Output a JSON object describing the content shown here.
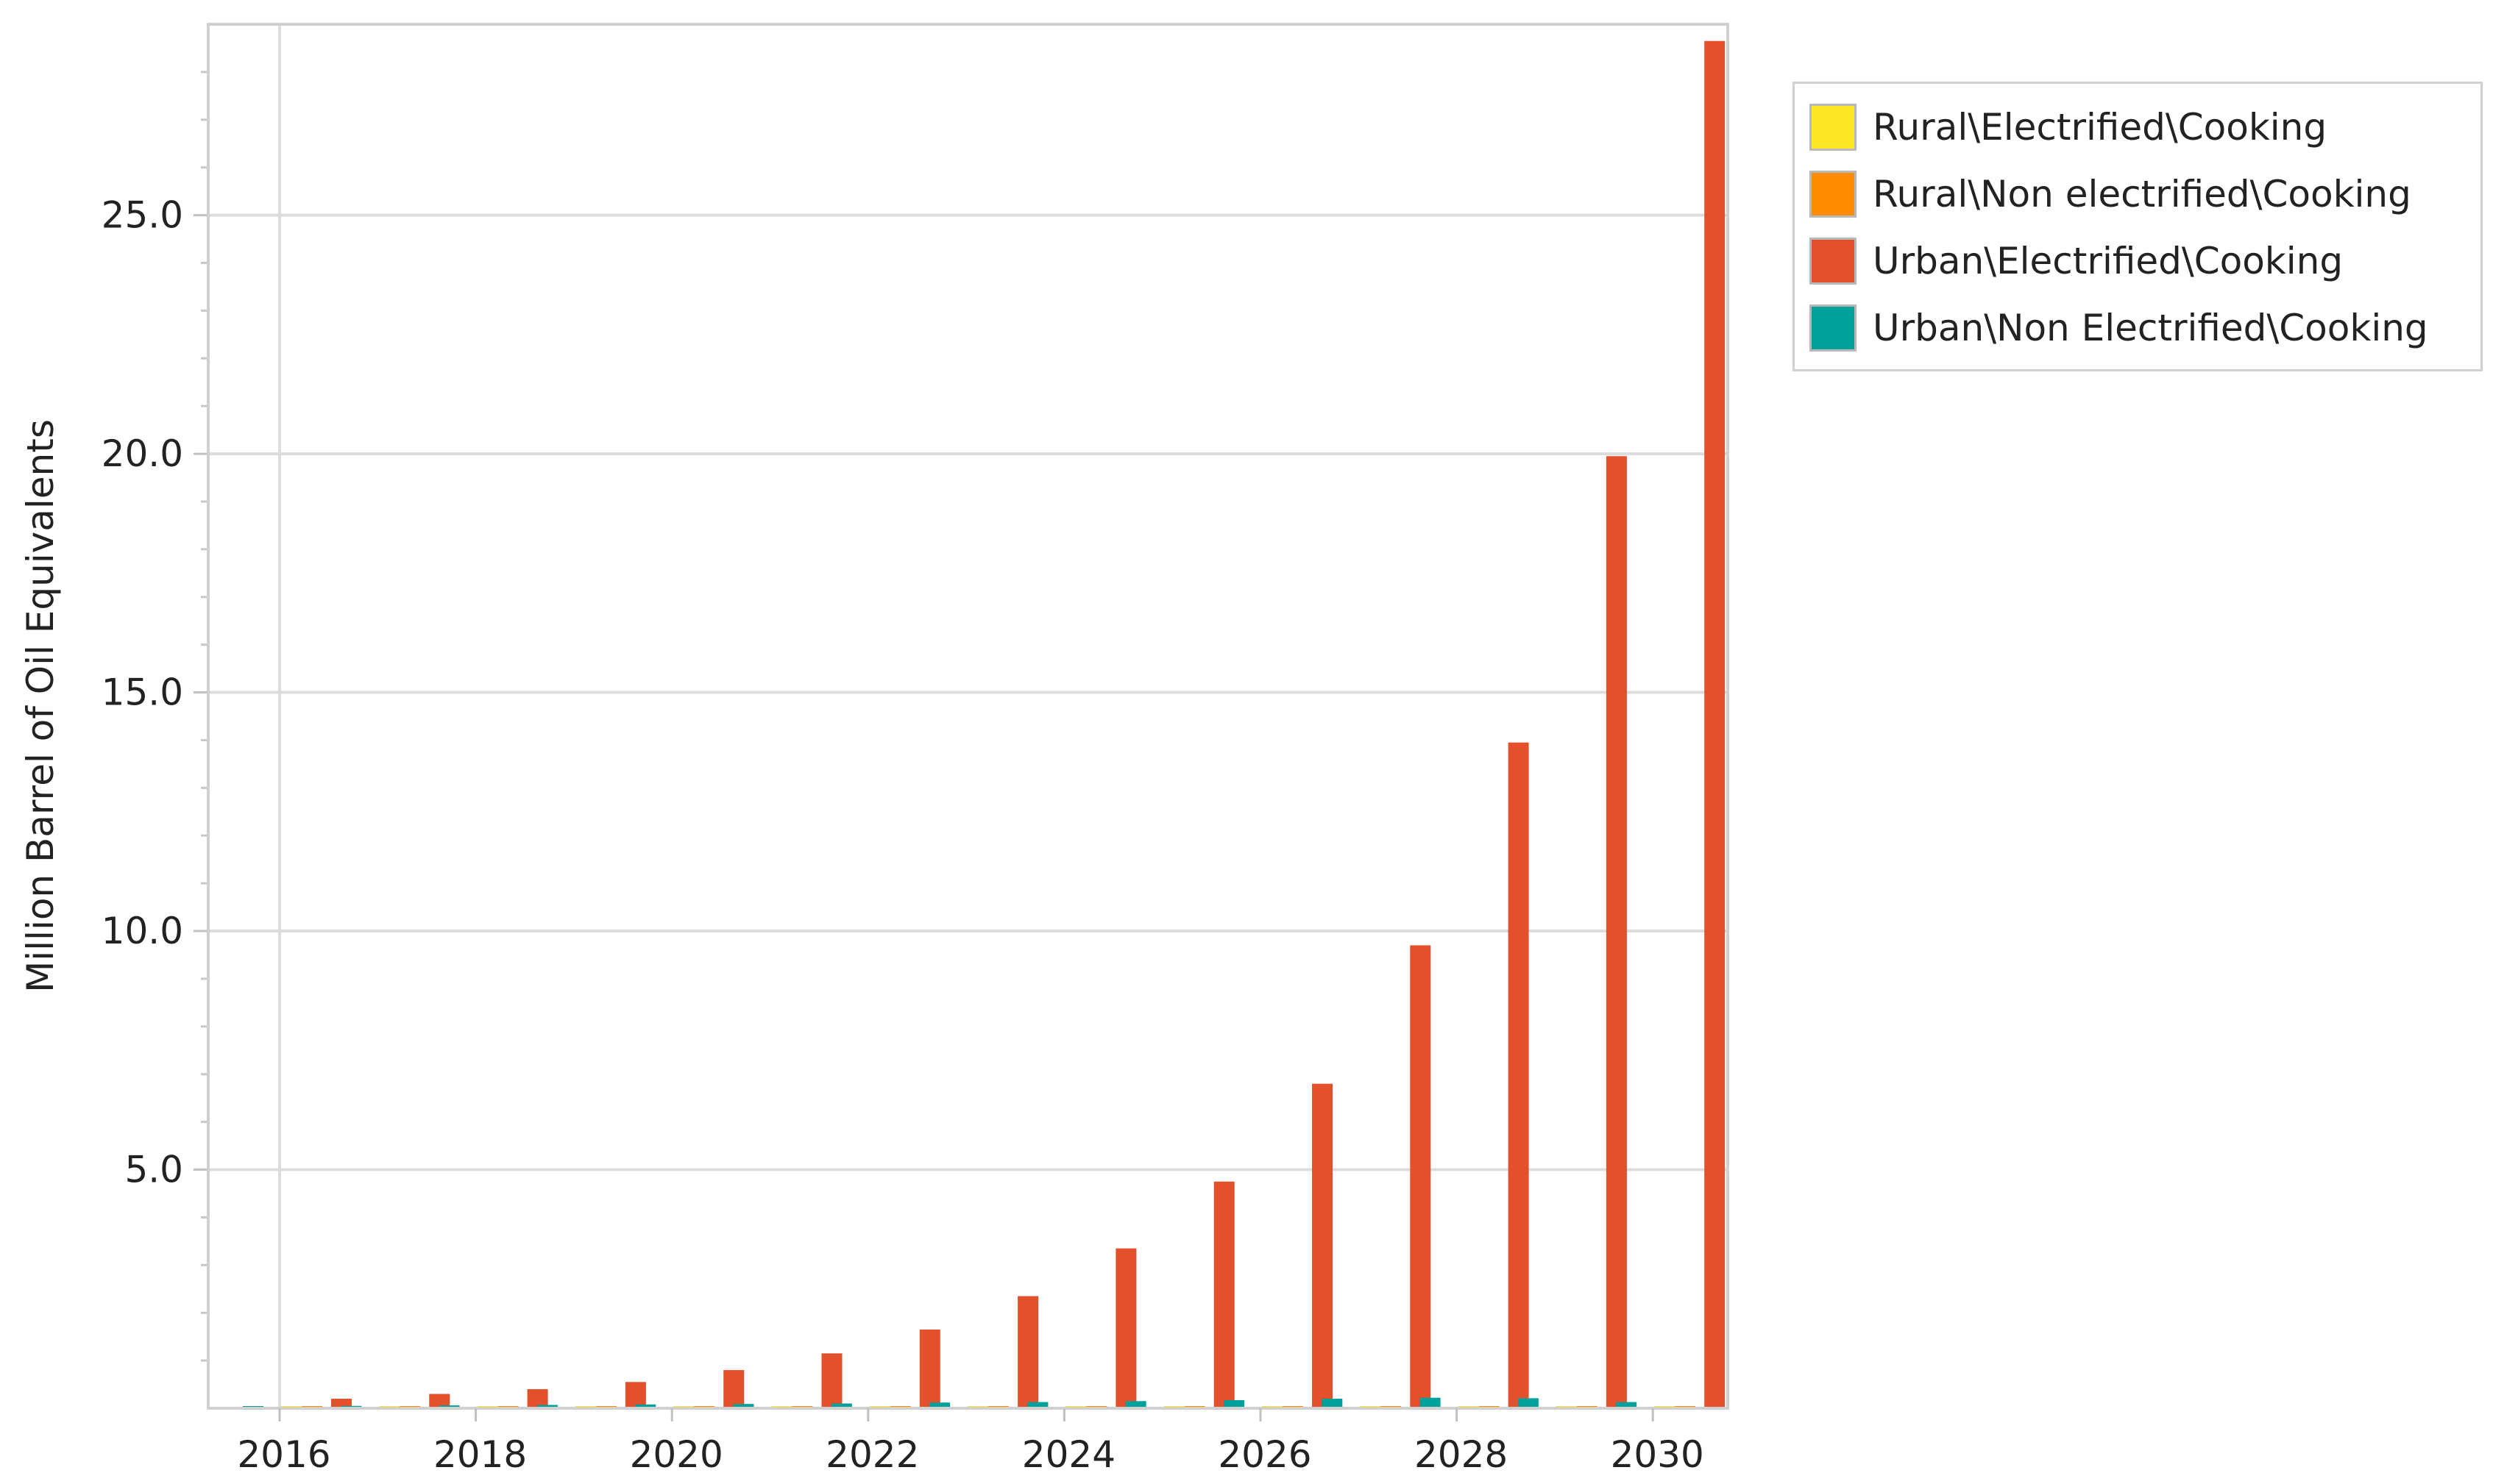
{
  "chart_data": {
    "type": "bar",
    "ylabel": "Million Barrel of Oil Equivalents",
    "xlabel": "",
    "ylim": [
      0,
      29
    ],
    "yticks": [
      "5.0",
      "10.0",
      "15.0",
      "20.0",
      "25.0"
    ],
    "x_tick_labels": [
      "2016",
      "2018",
      "2020",
      "2022",
      "2024",
      "2026",
      "2028",
      "2030"
    ],
    "categories": [
      "2016",
      "2017",
      "2018",
      "2019",
      "2020",
      "2021",
      "2022",
      "2023",
      "2024",
      "2025",
      "2026",
      "2027",
      "2028",
      "2029",
      "2030"
    ],
    "grid": true,
    "legend_position": "right",
    "series": [
      {
        "name": "Rural\\Electrified\\Cooking",
        "color": "#fde725",
        "values": [
          0.01,
          0.01,
          0.01,
          0.01,
          0.01,
          0.01,
          0.01,
          0.01,
          0.01,
          0.01,
          0.01,
          0.01,
          0.01,
          0.01,
          0.01
        ]
      },
      {
        "name": "Rural\\Non electrified\\Cooking",
        "color": "#ff8c00",
        "values": [
          0.01,
          0.01,
          0.01,
          0.01,
          0.01,
          0.01,
          0.01,
          0.01,
          0.01,
          0.01,
          0.01,
          0.01,
          0.01,
          0.01,
          0.01
        ]
      },
      {
        "name": "Urban\\Electrified\\Cooking",
        "color": "#e2512b",
        "values": [
          0.2,
          0.3,
          0.4,
          0.55,
          0.8,
          1.15,
          1.65,
          2.35,
          3.35,
          4.75,
          6.8,
          9.7,
          13.95,
          19.95,
          28.65
        ]
      },
      {
        "name": "Urban\\Non Electrified\\Cooking",
        "color": "#00a19a",
        "values": [
          0.04,
          0.05,
          0.06,
          0.07,
          0.08,
          0.09,
          0.1,
          0.12,
          0.13,
          0.15,
          0.17,
          0.2,
          0.22,
          0.21,
          0.13
        ]
      }
    ]
  }
}
